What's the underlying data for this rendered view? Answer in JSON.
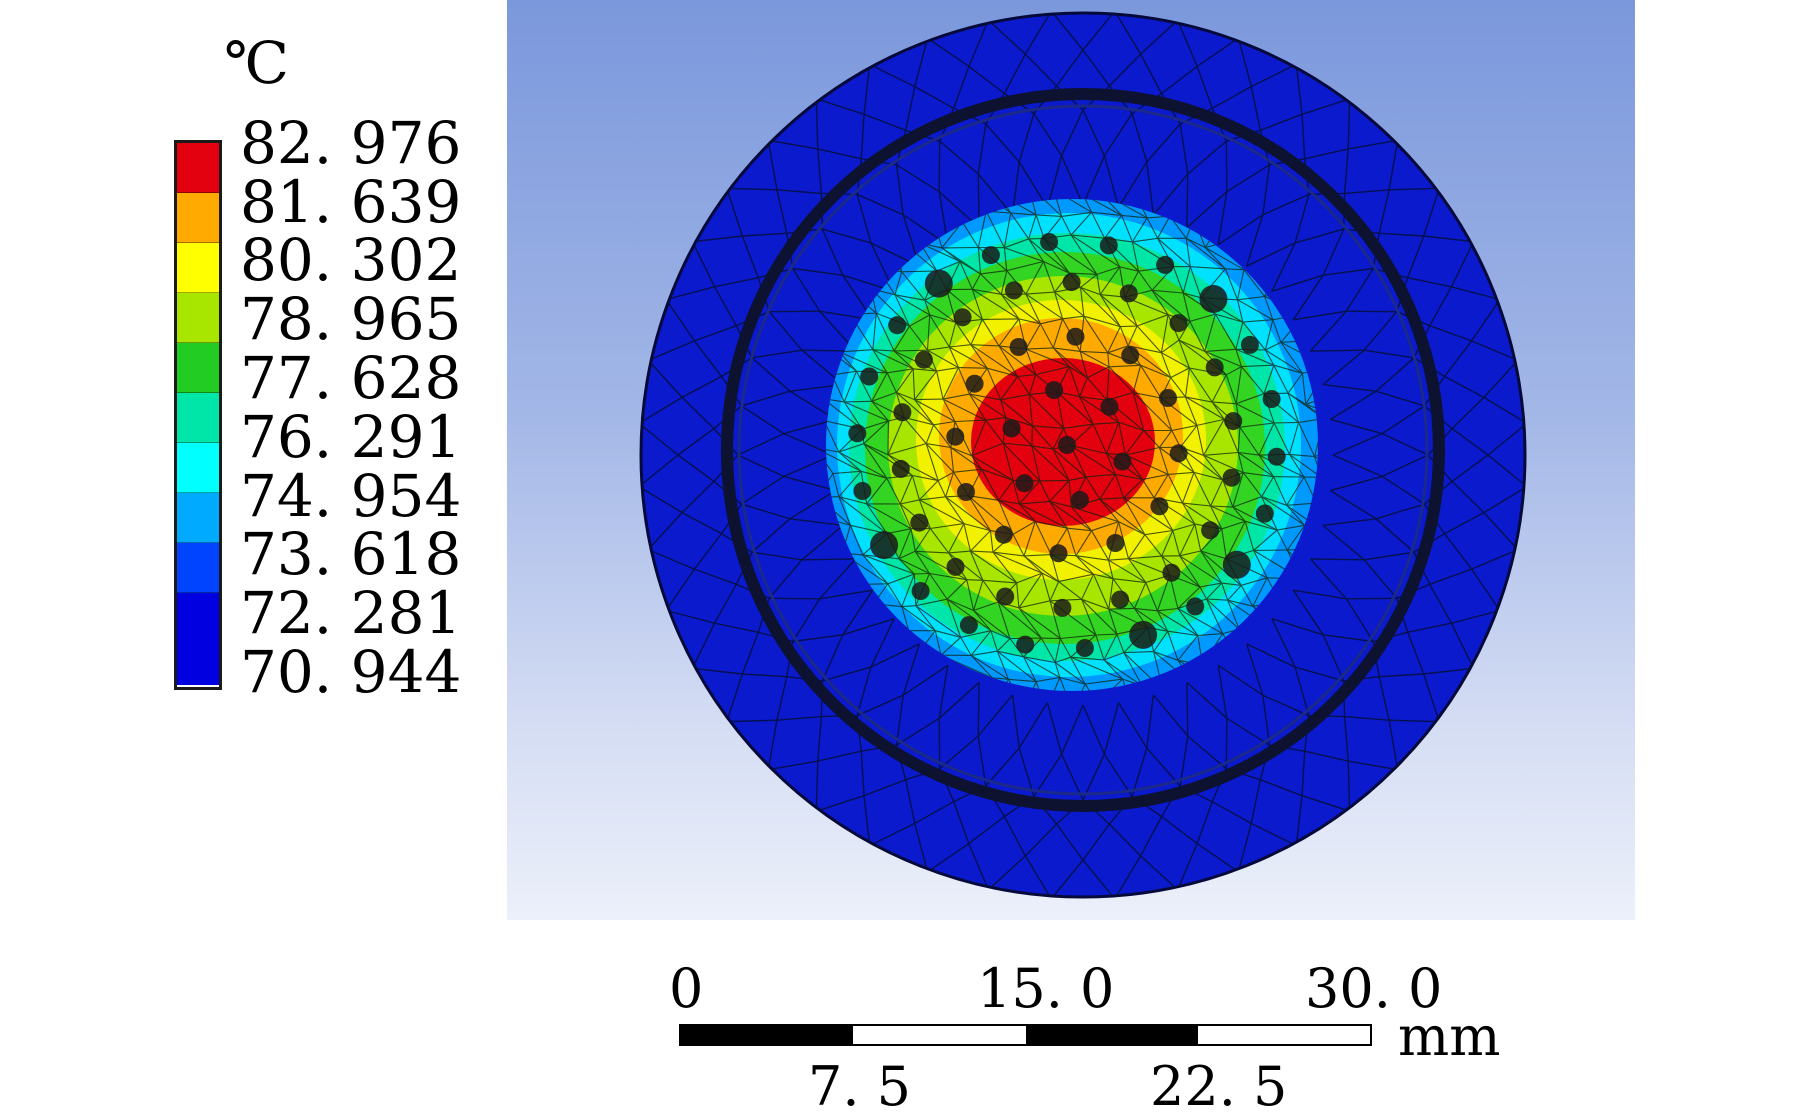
{
  "legend": {
    "unit": "℃",
    "labels": [
      "82. 976",
      "81. 639",
      "80. 302",
      "78. 965",
      "77. 628",
      "76. 291",
      "74. 954",
      "73. 618",
      "72. 281",
      "70. 944"
    ],
    "colors": [
      "#e3000f",
      "#ffaa00",
      "#ffff00",
      "#a8e600",
      "#22cc22",
      "#00e6a8",
      "#00ffff",
      "#00aaff",
      "#0044ff",
      "#0000e0"
    ]
  },
  "scale": {
    "top_labels": [
      "0",
      "15. 0",
      "30. 0"
    ],
    "bottom_labels": [
      "7. 5",
      "22. 5"
    ],
    "unit": "mm"
  }
}
